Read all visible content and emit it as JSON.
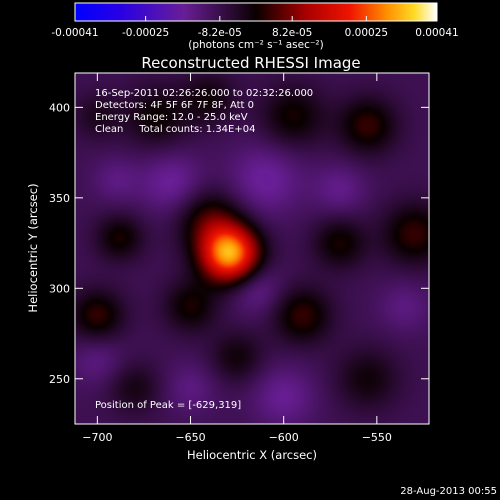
{
  "chart_data": {
    "type": "heatmap",
    "title": "Reconstructed RHESSI Image",
    "xlabel": "Heliocentric X (arcsec)",
    "ylabel": "Heliocentric Y (arcsec)",
    "xlim": [
      -712,
      -522
    ],
    "ylim": [
      225,
      419
    ],
    "xticks": [
      -700,
      -650,
      -600,
      -550
    ],
    "yticks": [
      250,
      300,
      350,
      400
    ],
    "colorbar": {
      "range": [
        -0.00041,
        0.00041
      ],
      "ticks": [
        "-0.00041",
        "-0.00025",
        "-8.2e-05",
        "8.2e-05",
        "0.00025",
        "0.00041"
      ],
      "tick_values": [
        -0.00041,
        -0.00025,
        -8.2e-05,
        8.2e-05,
        0.00025,
        0.00041
      ],
      "unit_label": "(photons cm⁻² s⁻¹ asec⁻²)"
    },
    "info_lines": [
      "16-Sep-2011 02:26:26.000 to 02:32:26.000",
      "Detectors: 4F 5F 6F 7F 8F, Att 0",
      "Energy Range: 12.0 - 25.0 keV",
      "Clean     Total counts: 1.34E+04"
    ],
    "peak_label": "Position of Peak = [-629,319]",
    "peak": {
      "x": -629,
      "y": 319,
      "value": 0.00041
    },
    "sources": [
      {
        "x": -629,
        "y": 319,
        "amp": 0.00041,
        "sigma": 11
      },
      {
        "x": -640,
        "y": 338,
        "amp": 0.00012,
        "sigma": 12
      },
      {
        "x": -700,
        "y": 285,
        "amp": 0.00012,
        "sigma": 10
      },
      {
        "x": -688,
        "y": 328,
        "amp": 0.0001,
        "sigma": 9
      },
      {
        "x": -668,
        "y": 395,
        "amp": 9e-05,
        "sigma": 12
      },
      {
        "x": -640,
        "y": 405,
        "amp": 8e-05,
        "sigma": 10
      },
      {
        "x": -595,
        "y": 395,
        "amp": 0.0001,
        "sigma": 12
      },
      {
        "x": -555,
        "y": 390,
        "amp": 0.00012,
        "sigma": 11
      },
      {
        "x": -530,
        "y": 330,
        "amp": 0.00012,
        "sigma": 12
      },
      {
        "x": -570,
        "y": 325,
        "amp": 0.0001,
        "sigma": 10
      },
      {
        "x": -590,
        "y": 285,
        "amp": 0.00012,
        "sigma": 11
      },
      {
        "x": -650,
        "y": 290,
        "amp": 0.0001,
        "sigma": 10
      },
      {
        "x": -625,
        "y": 262,
        "amp": 8e-05,
        "sigma": 10
      },
      {
        "x": -680,
        "y": 245,
        "amp": 7e-05,
        "sigma": 10
      },
      {
        "x": -555,
        "y": 250,
        "amp": 8e-05,
        "sigma": 12
      },
      {
        "x": -700,
        "y": 395,
        "amp": 6e-05,
        "sigma": 9
      },
      {
        "x": -660,
        "y": 358,
        "amp": -8e-05,
        "sigma": 12
      },
      {
        "x": -610,
        "y": 360,
        "amp": -8e-05,
        "sigma": 14
      },
      {
        "x": -615,
        "y": 300,
        "amp": -7e-05,
        "sigma": 10
      },
      {
        "x": -690,
        "y": 360,
        "amp": -5e-05,
        "sigma": 9
      },
      {
        "x": -570,
        "y": 355,
        "amp": -6e-05,
        "sigma": 10
      },
      {
        "x": -600,
        "y": 240,
        "amp": -7e-05,
        "sigma": 12
      },
      {
        "x": -700,
        "y": 260,
        "amp": -5e-05,
        "sigma": 10
      },
      {
        "x": -535,
        "y": 290,
        "amp": -5e-05,
        "sigma": 10
      },
      {
        "x": -650,
        "y": 245,
        "amp": -5e-05,
        "sigma": 10
      }
    ]
  },
  "timestamp": "28-Aug-2013 00:55",
  "colors": {
    "background": "#000000",
    "text": "#ffffff"
  }
}
